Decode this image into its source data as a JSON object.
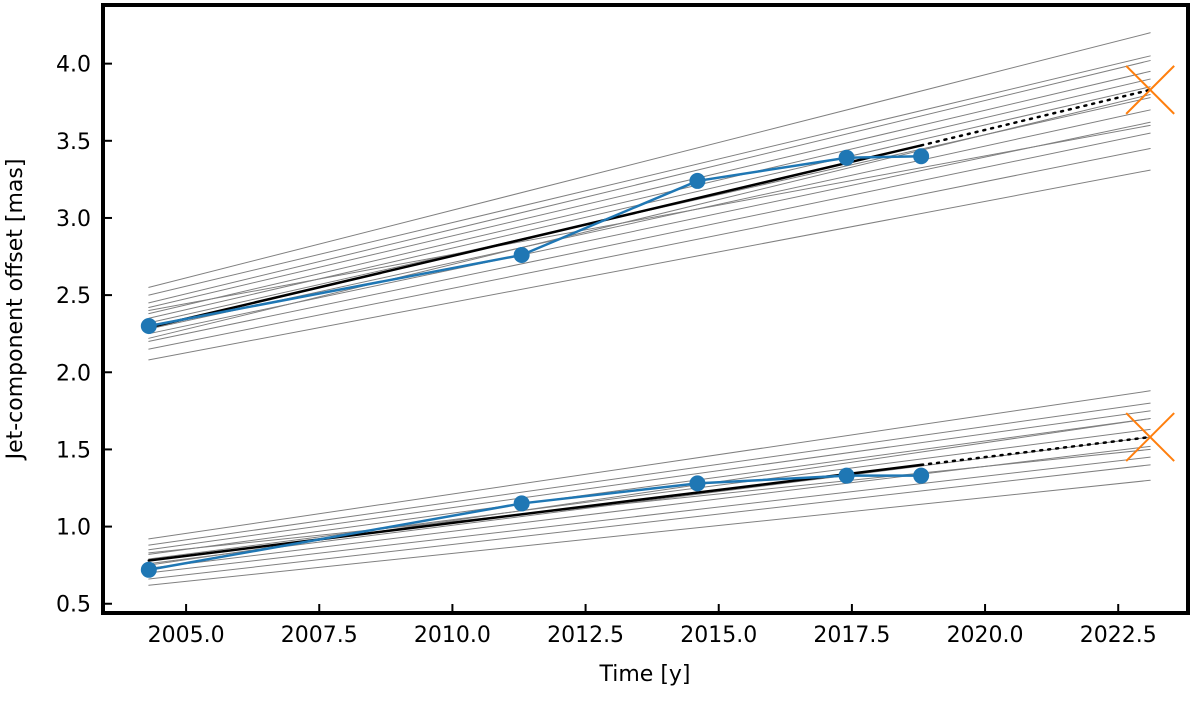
{
  "chart_data": {
    "type": "line",
    "xlabel": "Time [y]",
    "ylabel": "Jet-component offset [mas]",
    "xlim": [
      2003.44,
      2023.81
    ],
    "ylim": [
      0.44,
      4.38
    ],
    "xticks": [
      {
        "value": 2005,
        "label": "2005.0"
      },
      {
        "value": 2007.5,
        "label": "2007.5"
      },
      {
        "value": 2010,
        "label": "2010.0"
      },
      {
        "value": 2012.5,
        "label": "2012.5"
      },
      {
        "value": 2015,
        "label": "2015.0"
      },
      {
        "value": 2017.5,
        "label": "2017.5"
      },
      {
        "value": 2020,
        "label": "2020.0"
      },
      {
        "value": 2022.5,
        "label": "2022.5"
      }
    ],
    "yticks": [
      {
        "value": 0.5,
        "label": "0.5"
      },
      {
        "value": 1,
        "label": "1.0"
      },
      {
        "value": 1.5,
        "label": "1.5"
      },
      {
        "value": 2,
        "label": "2.0"
      },
      {
        "value": 2.5,
        "label": "2.5"
      },
      {
        "value": 3,
        "label": "3.0"
      },
      {
        "value": 3.5,
        "label": "3.5"
      },
      {
        "value": 4,
        "label": "4.0"
      }
    ],
    "series": [
      {
        "color": "#808080",
        "x": [
          2004.3,
          2023.1
        ],
        "values": [
          2.08,
          3.31
        ]
      },
      {
        "color": "#808080",
        "x": [
          2004.3,
          2023.1
        ],
        "values": [
          2.15,
          3.45
        ]
      },
      {
        "color": "#808080",
        "x": [
          2004.3,
          2023.1
        ],
        "values": [
          2.2,
          3.55
        ]
      },
      {
        "color": "#808080",
        "x": [
          2004.3,
          2023.1
        ],
        "values": [
          2.25,
          3.62
        ]
      },
      {
        "color": "#808080",
        "x": [
          2004.3,
          2023.1
        ],
        "values": [
          2.28,
          3.7
        ]
      },
      {
        "color": "#808080",
        "x": [
          2004.3,
          2023.1
        ],
        "values": [
          2.32,
          3.78
        ]
      },
      {
        "color": "#808080",
        "x": [
          2004.3,
          2023.1
        ],
        "values": [
          2.35,
          3.85
        ]
      },
      {
        "color": "#808080",
        "x": [
          2004.3,
          2023.1
        ],
        "values": [
          2.38,
          3.9
        ]
      },
      {
        "color": "#808080",
        "x": [
          2004.3,
          2023.1
        ],
        "values": [
          2.42,
          3.95
        ]
      },
      {
        "color": "#808080",
        "x": [
          2004.3,
          2023.1
        ],
        "values": [
          2.45,
          4.02
        ]
      },
      {
        "color": "#808080",
        "x": [
          2004.3,
          2023.1
        ],
        "values": [
          2.5,
          4.05
        ]
      },
      {
        "color": "#808080",
        "x": [
          2004.3,
          2023.1
        ],
        "values": [
          2.55,
          4.2
        ]
      },
      {
        "color": "#808080",
        "x": [
          2004.3,
          2023.1
        ],
        "values": [
          2.22,
          3.8
        ]
      },
      {
        "color": "#808080",
        "x": [
          2004.3,
          2023.1
        ],
        "values": [
          2.4,
          3.6
        ]
      },
      {
        "color": "#808080",
        "x": [
          2004.3,
          2023.1
        ],
        "values": [
          0.62,
          1.3
        ]
      },
      {
        "color": "#808080",
        "x": [
          2004.3,
          2023.1
        ],
        "values": [
          0.66,
          1.4
        ]
      },
      {
        "color": "#808080",
        "x": [
          2004.3,
          2023.1
        ],
        "values": [
          0.7,
          1.45
        ]
      },
      {
        "color": "#808080",
        "x": [
          2004.3,
          2023.1
        ],
        "values": [
          0.73,
          1.52
        ]
      },
      {
        "color": "#808080",
        "x": [
          2004.3,
          2023.1
        ],
        "values": [
          0.76,
          1.58
        ]
      },
      {
        "color": "#808080",
        "x": [
          2004.3,
          2023.1
        ],
        "values": [
          0.79,
          1.63
        ]
      },
      {
        "color": "#808080",
        "x": [
          2004.3,
          2023.1
        ],
        "values": [
          0.82,
          1.7
        ]
      },
      {
        "color": "#808080",
        "x": [
          2004.3,
          2023.1
        ],
        "values": [
          0.85,
          1.75
        ]
      },
      {
        "color": "#808080",
        "x": [
          2004.3,
          2023.1
        ],
        "values": [
          0.88,
          1.8
        ]
      },
      {
        "color": "#808080",
        "x": [
          2004.3,
          2023.1
        ],
        "values": [
          0.92,
          1.88
        ]
      },
      {
        "color": "#808080",
        "x": [
          2004.3,
          2023.1
        ],
        "values": [
          0.75,
          1.7
        ]
      },
      {
        "color": "#808080",
        "x": [
          2004.3,
          2023.1
        ],
        "values": [
          0.83,
          1.5
        ]
      },
      {
        "color": "#000000",
        "width": 2.5,
        "x": [
          2004.3,
          2018.8
        ],
        "values": [
          2.29,
          3.47
        ]
      },
      {
        "color": "#000000",
        "width": 2.5,
        "dotted": true,
        "x": [
          2018.8,
          2023.1
        ],
        "values": [
          3.47,
          3.83
        ]
      },
      {
        "color": "#000000",
        "width": 2.5,
        "x": [
          2004.3,
          2018.8
        ],
        "values": [
          0.78,
          1.4
        ]
      },
      {
        "color": "#000000",
        "width": 2.5,
        "dotted": true,
        "x": [
          2018.8,
          2023.1
        ],
        "values": [
          1.4,
          1.58
        ]
      },
      {
        "color": "#1f77b4",
        "width": 2.5,
        "marker": "o",
        "x": [
          2004.3,
          2011.3,
          2014.6,
          2017.4,
          2018.8
        ],
        "values": [
          2.3,
          2.76,
          3.24,
          3.39,
          3.4
        ]
      },
      {
        "color": "#1f77b4",
        "width": 2.5,
        "marker": "o",
        "x": [
          2004.3,
          2011.3,
          2014.6,
          2017.4,
          2018.8
        ],
        "values": [
          0.72,
          1.15,
          1.28,
          1.33,
          1.33
        ]
      },
      {
        "color": "#ff7f0e",
        "marker": "x",
        "x": [
          2023.1
        ],
        "values": [
          3.83
        ]
      },
      {
        "color": "#ff7f0e",
        "marker": "x",
        "x": [
          2023.1
        ],
        "values": [
          1.58
        ]
      }
    ]
  }
}
